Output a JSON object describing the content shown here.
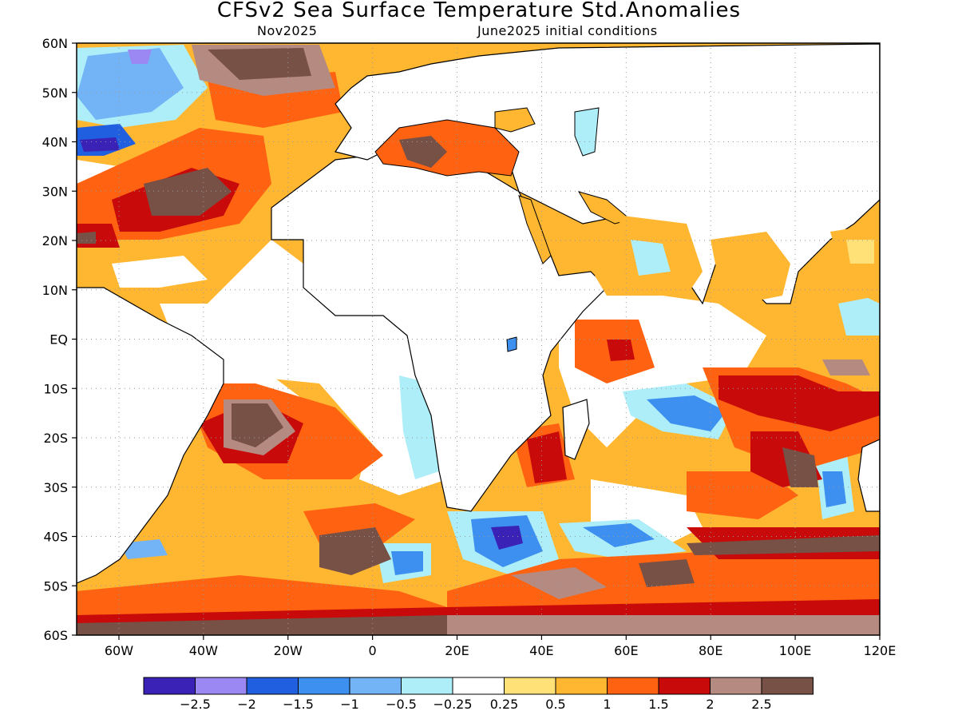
{
  "title": "CFSv2 Sea Surface Temperature Std.Anomalies",
  "subtitle_left": "Nov2025",
  "subtitle_right": "June2025 initial conditions",
  "map": {
    "lon_range": [
      -70,
      120
    ],
    "lat_range": [
      -60,
      60
    ],
    "lat_ticks": [
      {
        "value": 60,
        "label": "60N"
      },
      {
        "value": 50,
        "label": "50N"
      },
      {
        "value": 40,
        "label": "40N"
      },
      {
        "value": 30,
        "label": "30N"
      },
      {
        "value": 20,
        "label": "20N"
      },
      {
        "value": 10,
        "label": "10N"
      },
      {
        "value": 0,
        "label": "EQ"
      },
      {
        "value": -10,
        "label": "10S"
      },
      {
        "value": -20,
        "label": "20S"
      },
      {
        "value": -30,
        "label": "30S"
      },
      {
        "value": -40,
        "label": "40S"
      },
      {
        "value": -50,
        "label": "50S"
      },
      {
        "value": -60,
        "label": "60S"
      }
    ],
    "lon_ticks": [
      {
        "value": -60,
        "label": "60W"
      },
      {
        "value": -40,
        "label": "40W"
      },
      {
        "value": -20,
        "label": "20W"
      },
      {
        "value": 0,
        "label": "0"
      },
      {
        "value": 20,
        "label": "20E"
      },
      {
        "value": 40,
        "label": "40E"
      },
      {
        "value": 60,
        "label": "60E"
      },
      {
        "value": 80,
        "label": "80E"
      },
      {
        "value": 100,
        "label": "100E"
      },
      {
        "value": 120,
        "label": "120E"
      }
    ],
    "gridlines": true
  },
  "colorbar": {
    "colors": [
      "#3a22b6",
      "#9b88f2",
      "#1f5fe0",
      "#3d8ff0",
      "#73b4f7",
      "#aeeef8",
      "#ffffff",
      "#ffe178",
      "#ffb631",
      "#ff6210",
      "#c80a0a",
      "#b58a80",
      "#775046"
    ],
    "labels": [
      "−2.5",
      "−2",
      "−1.5",
      "−1",
      "−0.5",
      "−0.25",
      "0.25",
      "0.5",
      "1",
      "1.5",
      "2",
      "2.5"
    ]
  }
}
